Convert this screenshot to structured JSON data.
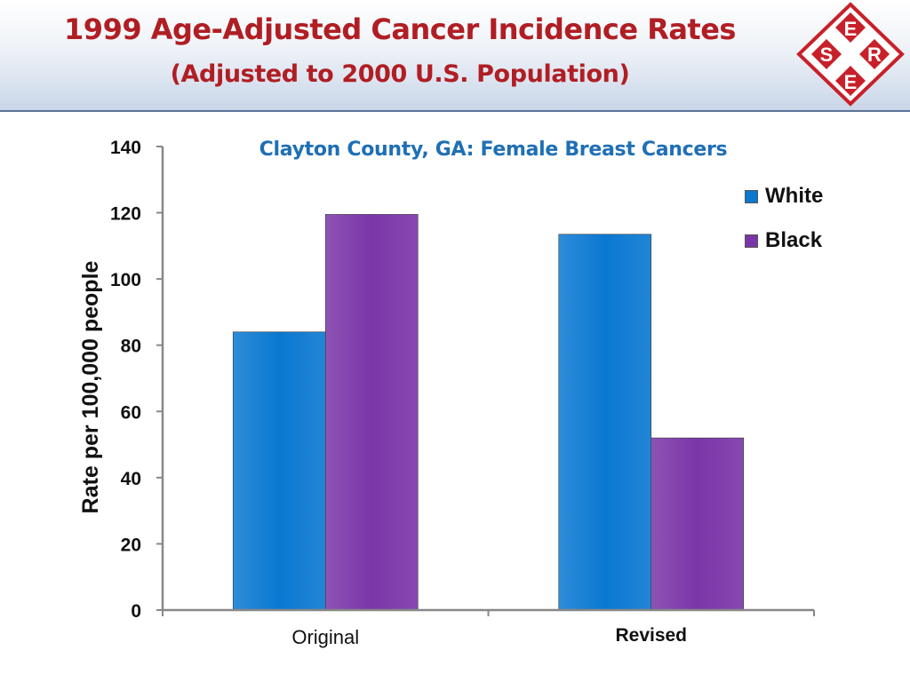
{
  "header": {
    "title": "1999 Age-Adjusted Cancer Incidence Rates",
    "subtitle": "(Adjusted to 2000 U.S. Population)"
  },
  "logo": {
    "letters": [
      "E",
      "S",
      "R",
      "E"
    ]
  },
  "colors": {
    "white_series": "#0a78d1",
    "black_series": "#7a35a8",
    "title_red": "#b01e23",
    "chart_title_blue": "#1f6fb5"
  },
  "chart_data": {
    "type": "bar",
    "title": "Clayton County, GA: Female Breast Cancers",
    "ylabel": "Rate per 100,000 people",
    "xlabel": "",
    "ylim": [
      0,
      140
    ],
    "yticks": [
      0,
      20,
      40,
      60,
      80,
      100,
      120,
      140
    ],
    "categories": [
      "Original",
      "Revised"
    ],
    "series": [
      {
        "name": "White",
        "values": [
          84,
          113.5
        ]
      },
      {
        "name": "Black",
        "values": [
          119.5,
          52
        ]
      }
    ],
    "legend_position": "top-right",
    "grid": false
  }
}
